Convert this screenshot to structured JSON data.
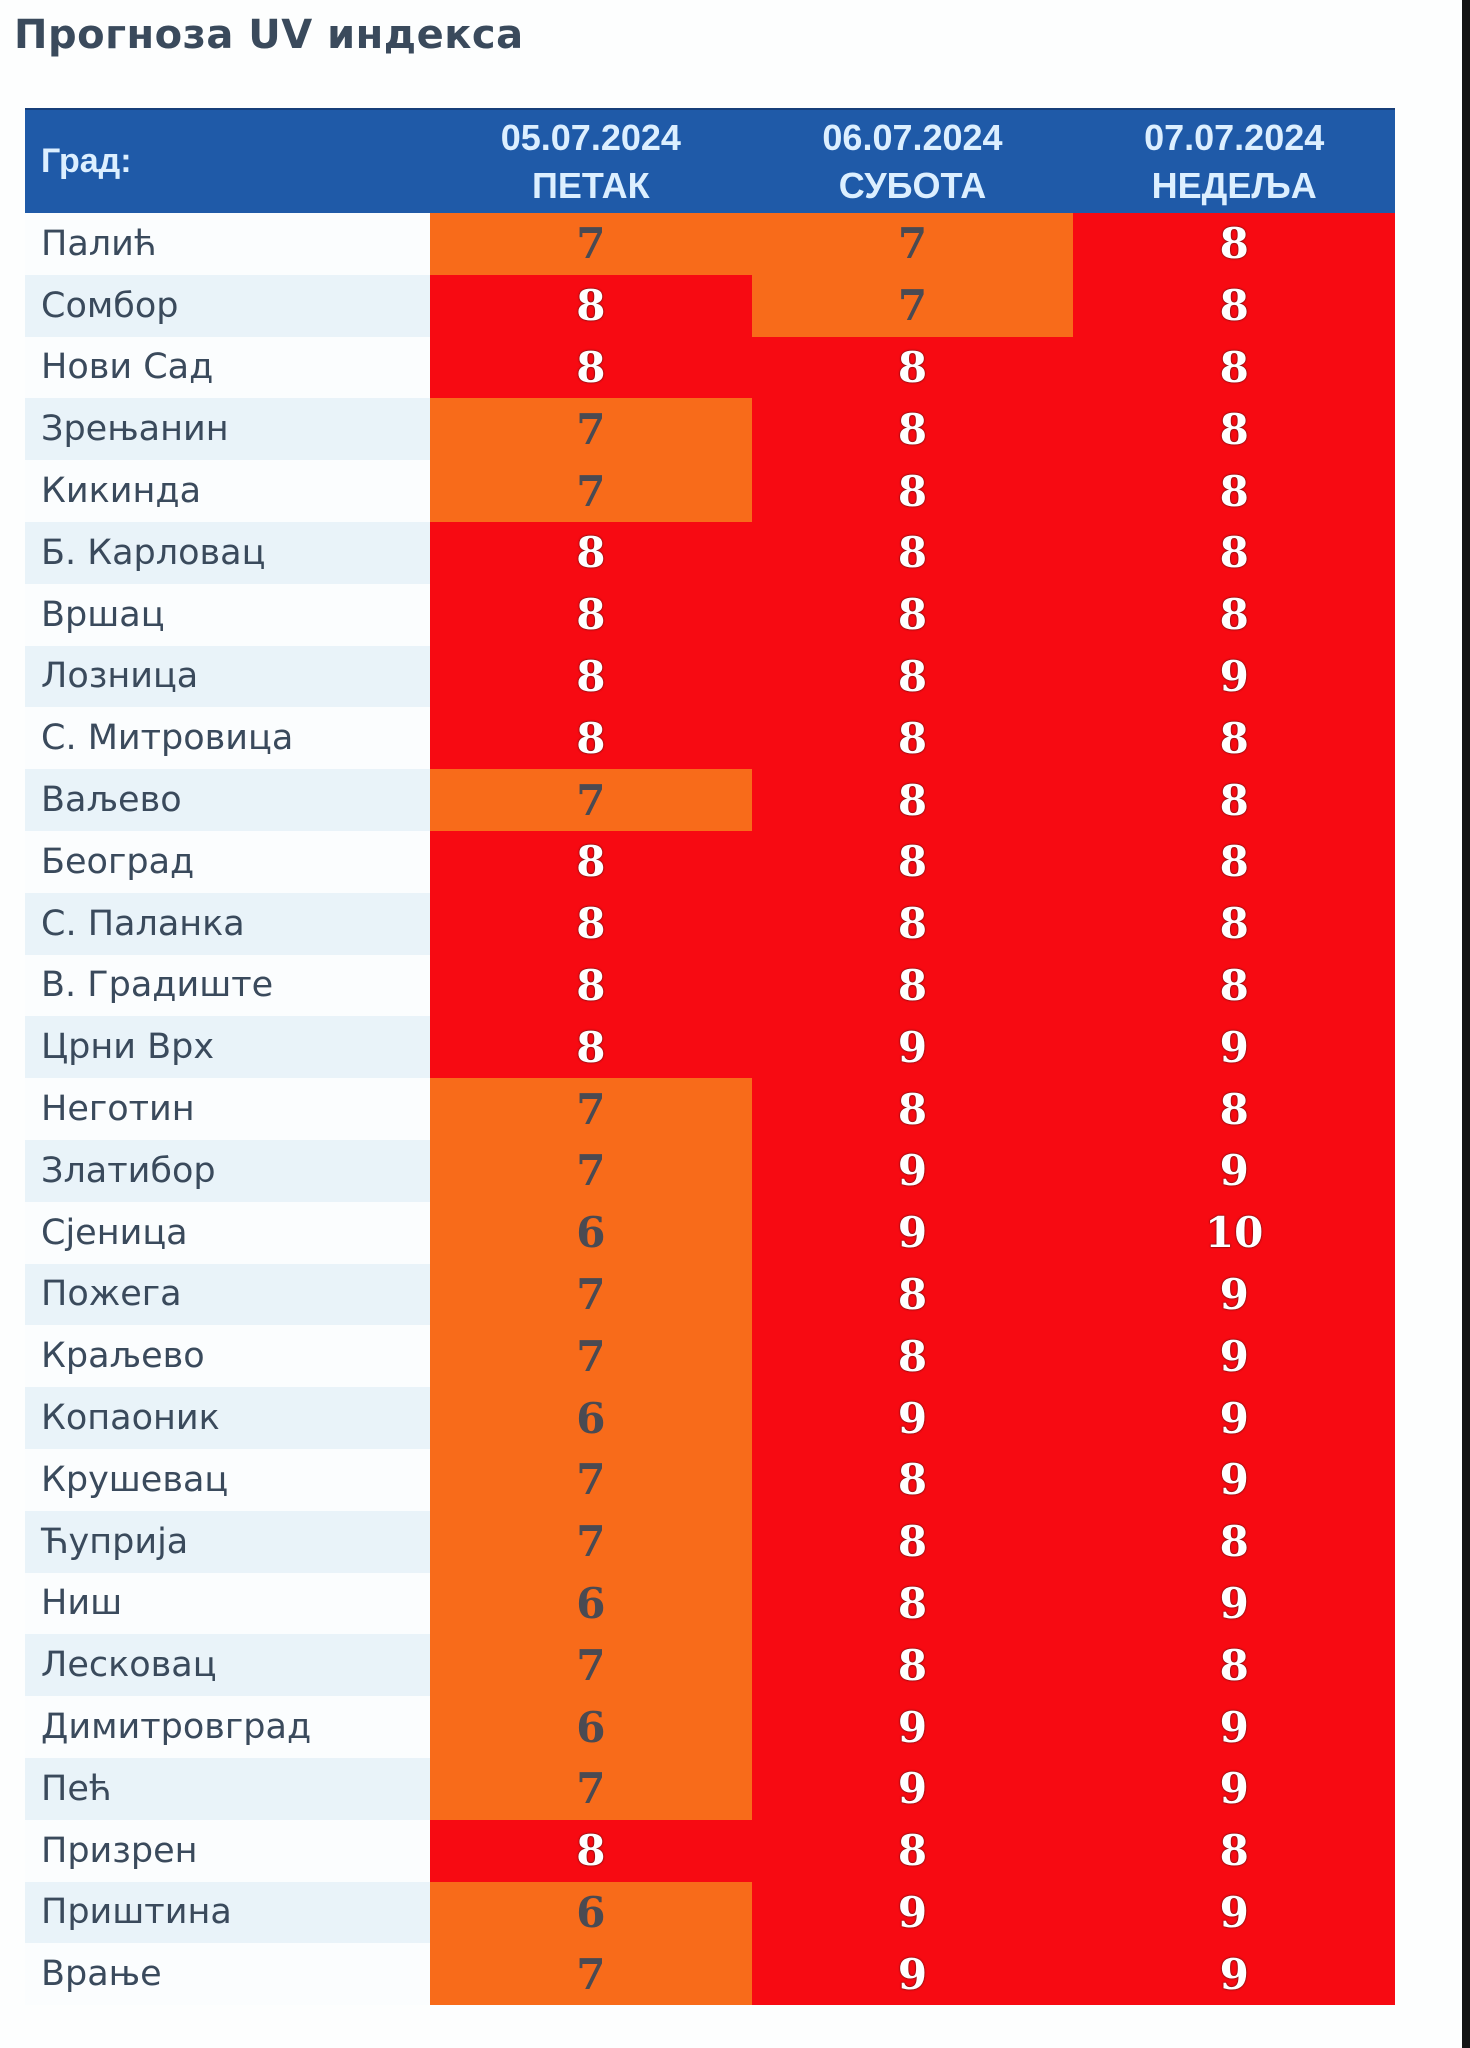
{
  "title": "Прогноза UV индекса",
  "colors": {
    "header_bg": "#1f5aa8",
    "header_text": "#dcefff",
    "very_high": "#f70a12",
    "high": "#f86b1a",
    "city_text": "#3a4a5c"
  },
  "table": {
    "city_header": "Град:",
    "days": [
      {
        "date": "05.07.2024",
        "weekday": "ПЕТАК"
      },
      {
        "date": "06.07.2024",
        "weekday": "СУБОТА"
      },
      {
        "date": "07.07.2024",
        "weekday": "НЕДЕЉА"
      }
    ],
    "rows": [
      {
        "city": "Палић",
        "values": [
          "7",
          "7",
          "8"
        ]
      },
      {
        "city": "Сомбор",
        "values": [
          "8",
          "7",
          "8"
        ]
      },
      {
        "city": "Нови Сад",
        "values": [
          "8",
          "8",
          "8"
        ]
      },
      {
        "city": "Зрењанин",
        "values": [
          "7",
          "8",
          "8"
        ]
      },
      {
        "city": "Кикинда",
        "values": [
          "7",
          "8",
          "8"
        ]
      },
      {
        "city": "Б. Карловац",
        "values": [
          "8",
          "8",
          "8"
        ]
      },
      {
        "city": "Вршац",
        "values": [
          "8",
          "8",
          "8"
        ]
      },
      {
        "city": "Лозница",
        "values": [
          "8",
          "8",
          "9"
        ]
      },
      {
        "city": "С. Митровица",
        "values": [
          "8",
          "8",
          "8"
        ]
      },
      {
        "city": "Ваљево",
        "values": [
          "7",
          "8",
          "8"
        ]
      },
      {
        "city": "Београд",
        "values": [
          "8",
          "8",
          "8"
        ]
      },
      {
        "city": "С. Паланка",
        "values": [
          "8",
          "8",
          "8"
        ]
      },
      {
        "city": "В. Градиште",
        "values": [
          "8",
          "8",
          "8"
        ]
      },
      {
        "city": "Црни Врх",
        "values": [
          "8",
          "9",
          "9"
        ]
      },
      {
        "city": "Неготин",
        "values": [
          "7",
          "8",
          "8"
        ]
      },
      {
        "city": "Златибор",
        "values": [
          "7",
          "9",
          "9"
        ]
      },
      {
        "city": "Сјеница",
        "values": [
          "6",
          "9",
          "10"
        ]
      },
      {
        "city": "Пожега",
        "values": [
          "7",
          "8",
          "9"
        ]
      },
      {
        "city": "Краљево",
        "values": [
          "7",
          "8",
          "9"
        ]
      },
      {
        "city": "Копаоник",
        "values": [
          "6",
          "9",
          "9"
        ]
      },
      {
        "city": "Крушевац",
        "values": [
          "7",
          "8",
          "9"
        ]
      },
      {
        "city": "Ћуприја",
        "values": [
          "7",
          "8",
          "8"
        ]
      },
      {
        "city": "Ниш",
        "values": [
          "6",
          "8",
          "9"
        ]
      },
      {
        "city": "Лесковац",
        "values": [
          "7",
          "8",
          "8"
        ]
      },
      {
        "city": "Димитровград",
        "values": [
          "6",
          "9",
          "9"
        ]
      },
      {
        "city": "Пећ",
        "values": [
          "7",
          "9",
          "9"
        ]
      },
      {
        "city": "Призрен",
        "values": [
          "8",
          "8",
          "8"
        ]
      },
      {
        "city": "Приштина",
        "values": [
          "6",
          "9",
          "9"
        ]
      },
      {
        "city": "Врање",
        "values": [
          "7",
          "9",
          "9"
        ]
      }
    ]
  }
}
